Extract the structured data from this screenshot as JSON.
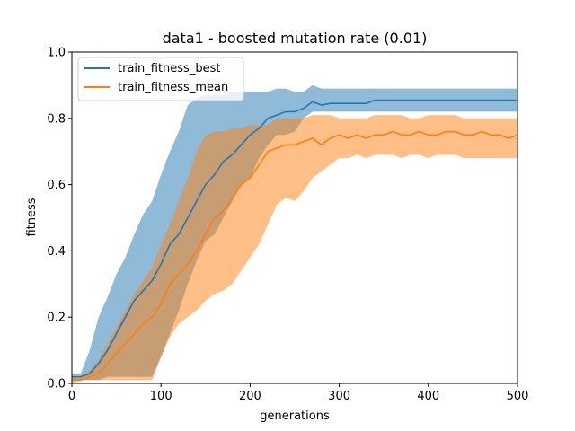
{
  "chart_data": {
    "type": "line",
    "title": "data1 - boosted mutation rate (0.01)",
    "xlabel": "generations",
    "ylabel": "fitness",
    "xlim": [
      0,
      500
    ],
    "ylim": [
      0,
      1.0
    ],
    "x_ticks": [
      "0",
      "100",
      "200",
      "300",
      "400",
      "500"
    ],
    "y_ticks": [
      "0.0",
      "0.2",
      "0.4",
      "0.6",
      "0.8",
      "1.0"
    ],
    "grid": false,
    "legend": "upper-left",
    "series": [
      {
        "name": "train_fitness_best",
        "color": "#1f77b4",
        "band_color": "#1f77b4",
        "x": [
          0,
          10,
          20,
          30,
          40,
          50,
          60,
          70,
          80,
          90,
          100,
          110,
          120,
          130,
          140,
          150,
          160,
          170,
          180,
          190,
          200,
          210,
          220,
          230,
          240,
          250,
          260,
          270,
          280,
          290,
          300,
          310,
          320,
          330,
          340,
          350,
          400,
          450,
          500
        ],
        "mean": [
          0.02,
          0.02,
          0.03,
          0.06,
          0.1,
          0.15,
          0.2,
          0.25,
          0.28,
          0.31,
          0.36,
          0.42,
          0.45,
          0.5,
          0.55,
          0.6,
          0.63,
          0.67,
          0.69,
          0.72,
          0.75,
          0.77,
          0.8,
          0.81,
          0.82,
          0.82,
          0.83,
          0.85,
          0.84,
          0.845,
          0.845,
          0.845,
          0.845,
          0.845,
          0.855,
          0.855,
          0.855,
          0.855,
          0.855
        ],
        "upper": [
          0.03,
          0.03,
          0.1,
          0.2,
          0.26,
          0.33,
          0.38,
          0.45,
          0.51,
          0.55,
          0.63,
          0.7,
          0.76,
          0.84,
          0.86,
          0.87,
          0.87,
          0.87,
          0.88,
          0.88,
          0.88,
          0.88,
          0.88,
          0.89,
          0.89,
          0.88,
          0.88,
          0.9,
          0.89,
          0.89,
          0.89,
          0.89,
          0.89,
          0.89,
          0.89,
          0.89,
          0.89,
          0.89,
          0.89
        ],
        "lower": [
          0.01,
          0.01,
          0.01,
          0.01,
          0.02,
          0.02,
          0.02,
          0.02,
          0.02,
          0.02,
          0.08,
          0.15,
          0.22,
          0.3,
          0.37,
          0.43,
          0.45,
          0.5,
          0.55,
          0.6,
          0.62,
          0.68,
          0.72,
          0.75,
          0.75,
          0.76,
          0.8,
          0.82,
          0.82,
          0.82,
          0.82,
          0.82,
          0.82,
          0.82,
          0.82,
          0.82,
          0.82,
          0.82,
          0.82
        ]
      },
      {
        "name": "train_fitness_mean",
        "color": "#ff7f0e",
        "band_color": "#ff7f0e",
        "x": [
          0,
          10,
          20,
          30,
          40,
          50,
          60,
          70,
          80,
          90,
          100,
          110,
          120,
          130,
          140,
          150,
          160,
          170,
          180,
          190,
          200,
          210,
          220,
          230,
          240,
          250,
          260,
          270,
          280,
          290,
          300,
          310,
          320,
          330,
          340,
          350,
          360,
          370,
          380,
          390,
          400,
          410,
          420,
          430,
          440,
          450,
          460,
          470,
          480,
          490,
          500
        ],
        "mean": [
          0.01,
          0.01,
          0.02,
          0.03,
          0.06,
          0.09,
          0.12,
          0.15,
          0.18,
          0.2,
          0.24,
          0.3,
          0.33,
          0.36,
          0.4,
          0.45,
          0.5,
          0.52,
          0.56,
          0.6,
          0.62,
          0.66,
          0.7,
          0.71,
          0.72,
          0.72,
          0.73,
          0.74,
          0.72,
          0.74,
          0.75,
          0.74,
          0.75,
          0.74,
          0.75,
          0.75,
          0.76,
          0.75,
          0.75,
          0.76,
          0.75,
          0.75,
          0.76,
          0.76,
          0.75,
          0.75,
          0.76,
          0.75,
          0.75,
          0.74,
          0.75
        ],
        "upper": [
          0.02,
          0.02,
          0.04,
          0.07,
          0.12,
          0.17,
          0.22,
          0.27,
          0.31,
          0.35,
          0.42,
          0.48,
          0.55,
          0.62,
          0.7,
          0.75,
          0.76,
          0.76,
          0.77,
          0.77,
          0.78,
          0.78,
          0.78,
          0.8,
          0.8,
          0.8,
          0.8,
          0.81,
          0.81,
          0.81,
          0.8,
          0.8,
          0.8,
          0.8,
          0.81,
          0.81,
          0.81,
          0.81,
          0.8,
          0.8,
          0.81,
          0.81,
          0.81,
          0.81,
          0.8,
          0.8,
          0.8,
          0.8,
          0.8,
          0.8,
          0.8
        ],
        "lower": [
          0.0,
          0.01,
          0.01,
          0.01,
          0.01,
          0.01,
          0.01,
          0.01,
          0.01,
          0.01,
          0.08,
          0.14,
          0.18,
          0.2,
          0.22,
          0.25,
          0.27,
          0.28,
          0.3,
          0.34,
          0.38,
          0.42,
          0.48,
          0.54,
          0.56,
          0.55,
          0.58,
          0.62,
          0.64,
          0.66,
          0.68,
          0.68,
          0.69,
          0.68,
          0.69,
          0.69,
          0.69,
          0.68,
          0.69,
          0.69,
          0.68,
          0.69,
          0.69,
          0.69,
          0.68,
          0.68,
          0.68,
          0.68,
          0.68,
          0.68,
          0.68
        ]
      }
    ]
  }
}
